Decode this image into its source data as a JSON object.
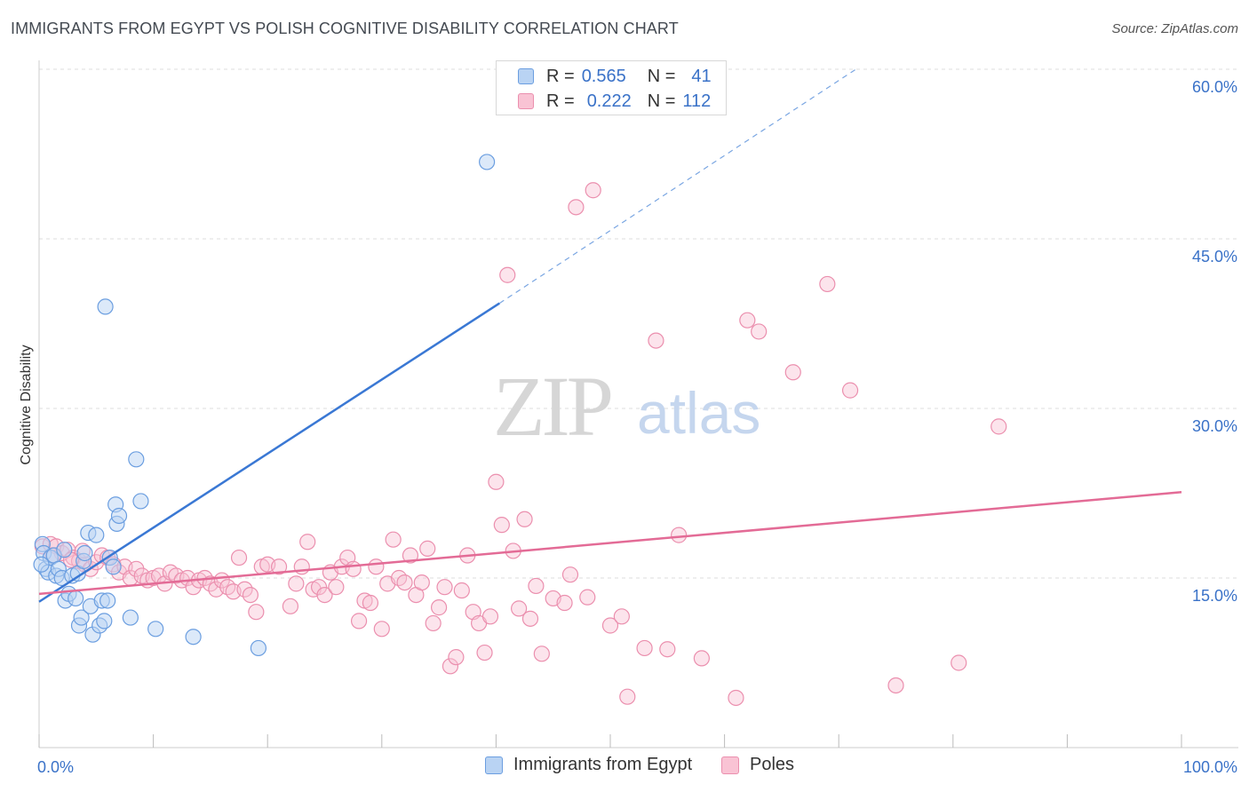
{
  "title": "IMMIGRANTS FROM EGYPT VS POLISH COGNITIVE DISABILITY CORRELATION CHART",
  "source": "Source: ZipAtlas.com",
  "watermark": {
    "zip": "ZIP",
    "atlas": "atlas"
  },
  "legend": {
    "r_label": "R =",
    "n_label": "N =",
    "rows": [
      {
        "r": "0.565",
        "n": "41",
        "fill": "#b9d3f3",
        "stroke": "#6b9ee0"
      },
      {
        "r": "0.222",
        "n": "112",
        "fill": "#f9c3d4",
        "stroke": "#eb8fae"
      }
    ]
  },
  "bottom_legend": [
    "Immigrants from Egypt",
    "Poles"
  ],
  "chart_data": {
    "type": "scatter",
    "title": "IMMIGRANTS FROM EGYPT VS POLISH COGNITIVE DISABILITY CORRELATION CHART",
    "xlabel": "",
    "ylabel": "Cognitive Disability",
    "xlim": [
      0,
      100
    ],
    "ylim": [
      0,
      63
    ],
    "x_tick_labels": [
      "0.0%",
      "100.0%"
    ],
    "y_ticks": [
      15,
      30,
      45,
      60
    ],
    "y_tick_labels": [
      "15.0%",
      "30.0%",
      "45.0%",
      "60.0%"
    ],
    "grid": "horizontal dashed",
    "colors": {
      "egypt": "#3a78d4",
      "poles": "#e36b96"
    },
    "series": [
      {
        "name": "Immigrants from Egypt",
        "color": "#6b9ee0",
        "trend": {
          "x0": 0,
          "y0": 12.9,
          "x1": 40.3,
          "y1": 39.3,
          "dash_to_x": 71.5,
          "dash_to_y": 60.0
        },
        "points": [
          [
            0.3,
            18.0
          ],
          [
            0.4,
            17.2
          ],
          [
            0.6,
            15.8
          ],
          [
            0.8,
            15.5
          ],
          [
            1.0,
            16.8
          ],
          [
            1.3,
            17.0
          ],
          [
            1.5,
            15.2
          ],
          [
            1.7,
            15.8
          ],
          [
            2.0,
            15.0
          ],
          [
            2.2,
            17.5
          ],
          [
            2.3,
            13.0
          ],
          [
            2.6,
            13.6
          ],
          [
            2.9,
            15.2
          ],
          [
            3.2,
            13.2
          ],
          [
            3.4,
            15.4
          ],
          [
            3.5,
            10.8
          ],
          [
            3.7,
            11.5
          ],
          [
            3.9,
            16.5
          ],
          [
            4.0,
            17.2
          ],
          [
            4.3,
            19.0
          ],
          [
            4.5,
            12.5
          ],
          [
            4.7,
            10.0
          ],
          [
            5.0,
            18.8
          ],
          [
            5.3,
            10.8
          ],
          [
            5.5,
            13.0
          ],
          [
            5.7,
            11.2
          ],
          [
            5.8,
            39.0
          ],
          [
            6.0,
            13.0
          ],
          [
            6.2,
            16.8
          ],
          [
            6.5,
            16.0
          ],
          [
            6.7,
            21.5
          ],
          [
            6.8,
            19.8
          ],
          [
            7.0,
            20.5
          ],
          [
            8.0,
            11.5
          ],
          [
            8.5,
            25.5
          ],
          [
            8.9,
            21.8
          ],
          [
            10.2,
            10.5
          ],
          [
            13.5,
            9.8
          ],
          [
            19.2,
            8.8
          ],
          [
            39.2,
            51.8
          ],
          [
            0.2,
            16.2
          ]
        ]
      },
      {
        "name": "Poles",
        "color": "#eb8fae",
        "trend": {
          "x0": 0,
          "y0": 13.6,
          "x1": 100,
          "y1": 22.6
        },
        "points": [
          [
            0.3,
            17.8
          ],
          [
            1.0,
            18.0
          ],
          [
            1.5,
            17.8
          ],
          [
            2.0,
            17.2
          ],
          [
            2.5,
            17.5
          ],
          [
            3.0,
            16.8
          ],
          [
            3.5,
            16.5
          ],
          [
            4.0,
            16.2
          ],
          [
            4.5,
            15.8
          ],
          [
            5.0,
            16.4
          ],
          [
            5.5,
            17.0
          ],
          [
            6.0,
            16.8
          ],
          [
            6.5,
            16.2
          ],
          [
            7.0,
            15.5
          ],
          [
            7.5,
            16.0
          ],
          [
            8.0,
            15.0
          ],
          [
            8.5,
            15.8
          ],
          [
            9.0,
            15.2
          ],
          [
            9.5,
            14.8
          ],
          [
            10.0,
            15.0
          ],
          [
            10.5,
            15.2
          ],
          [
            11.0,
            14.5
          ],
          [
            11.5,
            15.5
          ],
          [
            12.0,
            15.2
          ],
          [
            12.5,
            14.8
          ],
          [
            13.0,
            15.0
          ],
          [
            13.5,
            14.2
          ],
          [
            14.0,
            14.8
          ],
          [
            14.5,
            15.0
          ],
          [
            15.0,
            14.5
          ],
          [
            15.5,
            14.0
          ],
          [
            16.0,
            14.8
          ],
          [
            16.5,
            14.2
          ],
          [
            17.0,
            13.8
          ],
          [
            17.5,
            16.8
          ],
          [
            18.0,
            14.0
          ],
          [
            18.5,
            13.5
          ],
          [
            19.0,
            12.0
          ],
          [
            19.5,
            16.0
          ],
          [
            20.0,
            16.2
          ],
          [
            21.0,
            16.0
          ],
          [
            22.0,
            12.5
          ],
          [
            22.5,
            14.5
          ],
          [
            23.0,
            16.0
          ],
          [
            23.5,
            18.2
          ],
          [
            24.0,
            14.0
          ],
          [
            24.5,
            14.2
          ],
          [
            25.0,
            13.5
          ],
          [
            25.5,
            15.5
          ],
          [
            26.0,
            14.2
          ],
          [
            26.5,
            16.0
          ],
          [
            27.0,
            16.8
          ],
          [
            27.5,
            15.8
          ],
          [
            28.0,
            11.2
          ],
          [
            28.5,
            13.0
          ],
          [
            29.0,
            12.8
          ],
          [
            29.5,
            16.0
          ],
          [
            30.0,
            10.5
          ],
          [
            30.5,
            14.5
          ],
          [
            31.0,
            18.4
          ],
          [
            31.5,
            15.0
          ],
          [
            32.0,
            14.6
          ],
          [
            32.5,
            17.0
          ],
          [
            33.0,
            13.5
          ],
          [
            33.5,
            14.6
          ],
          [
            34.0,
            17.6
          ],
          [
            34.5,
            11.0
          ],
          [
            35.0,
            12.4
          ],
          [
            35.5,
            14.2
          ],
          [
            36.0,
            7.2
          ],
          [
            36.5,
            8.0
          ],
          [
            37.0,
            13.9
          ],
          [
            37.5,
            17.0
          ],
          [
            38.0,
            12.0
          ],
          [
            38.5,
            11.0
          ],
          [
            39.0,
            8.4
          ],
          [
            39.5,
            11.6
          ],
          [
            40.0,
            23.5
          ],
          [
            40.5,
            19.7
          ],
          [
            41.0,
            41.8
          ],
          [
            41.5,
            17.4
          ],
          [
            42.0,
            12.3
          ],
          [
            42.5,
            20.2
          ],
          [
            43.0,
            11.4
          ],
          [
            43.5,
            14.3
          ],
          [
            44.0,
            8.3
          ],
          [
            45.0,
            13.2
          ],
          [
            46.0,
            12.8
          ],
          [
            46.5,
            15.3
          ],
          [
            47.0,
            47.8
          ],
          [
            48.0,
            13.3
          ],
          [
            48.5,
            49.3
          ],
          [
            50.0,
            10.8
          ],
          [
            51.0,
            11.6
          ],
          [
            51.5,
            4.5
          ],
          [
            53.0,
            8.8
          ],
          [
            54.0,
            36.0
          ],
          [
            55.0,
            8.7
          ],
          [
            56.0,
            18.8
          ],
          [
            58.0,
            7.9
          ],
          [
            61.0,
            4.4
          ],
          [
            62.0,
            37.8
          ],
          [
            63.0,
            36.8
          ],
          [
            66.0,
            33.2
          ],
          [
            69.0,
            41.0
          ],
          [
            71.0,
            31.6
          ],
          [
            75.0,
            5.5
          ],
          [
            80.5,
            7.5
          ],
          [
            84.0,
            28.4
          ],
          [
            1.2,
            17.0
          ],
          [
            2.8,
            16.6
          ],
          [
            3.8,
            17.4
          ]
        ]
      }
    ]
  }
}
